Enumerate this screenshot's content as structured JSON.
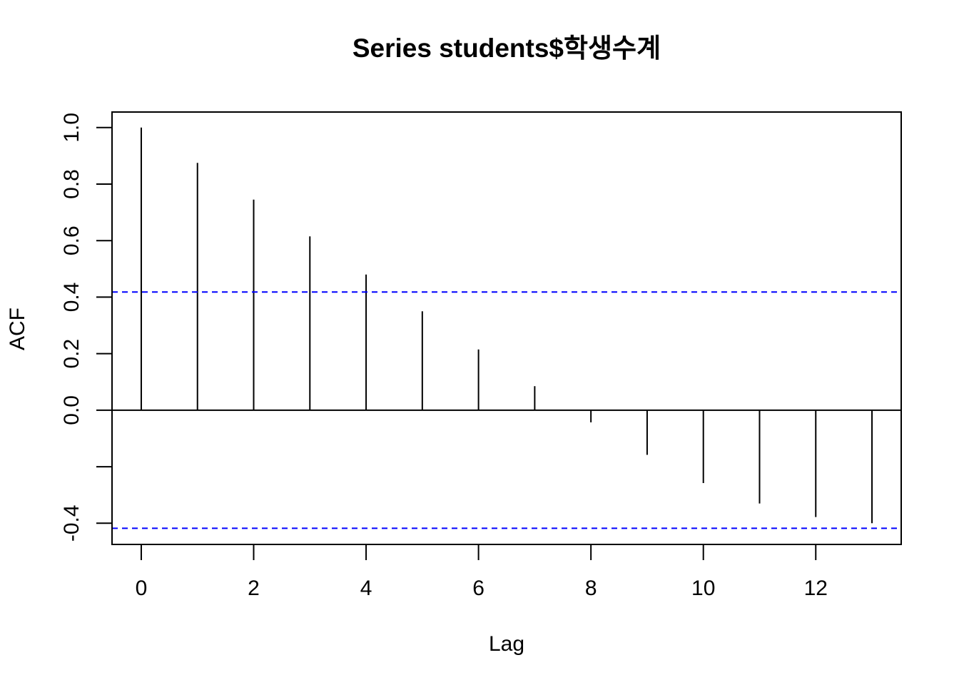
{
  "chart_data": {
    "type": "bar",
    "subtype": "acf-lollipop",
    "title": "Series  students$학생수계",
    "xlabel": "Lag",
    "ylabel": "ACF",
    "x": [
      0,
      1,
      2,
      3,
      4,
      5,
      6,
      7,
      8,
      9,
      10,
      11,
      12,
      13
    ],
    "values": [
      1.0,
      0.875,
      0.745,
      0.615,
      0.48,
      0.35,
      0.215,
      0.085,
      -0.043,
      -0.158,
      -0.258,
      -0.33,
      -0.378,
      -0.4
    ],
    "xlim": [
      -0.52,
      13.52
    ],
    "ylim": [
      -0.475,
      1.055
    ],
    "x_ticks": [
      0,
      2,
      4,
      6,
      8,
      10,
      12
    ],
    "x_tick_labels": [
      "0",
      "2",
      "4",
      "6",
      "8",
      "10",
      "12"
    ],
    "y_ticks": [
      -0.4,
      -0.2,
      0.0,
      0.2,
      0.4,
      0.6,
      0.8,
      1.0
    ],
    "y_tick_labels": [
      "-0.4",
      "",
      "0.0",
      "0.2",
      "0.4",
      "0.6",
      "0.8",
      "1.0"
    ],
    "confidence_bounds": [
      0.418,
      -0.418
    ],
    "zero_line": 0,
    "grid": false,
    "colors": {
      "bars": "#000000",
      "confidence": "#0000ff",
      "axes": "#000000",
      "background": "#ffffff"
    }
  }
}
